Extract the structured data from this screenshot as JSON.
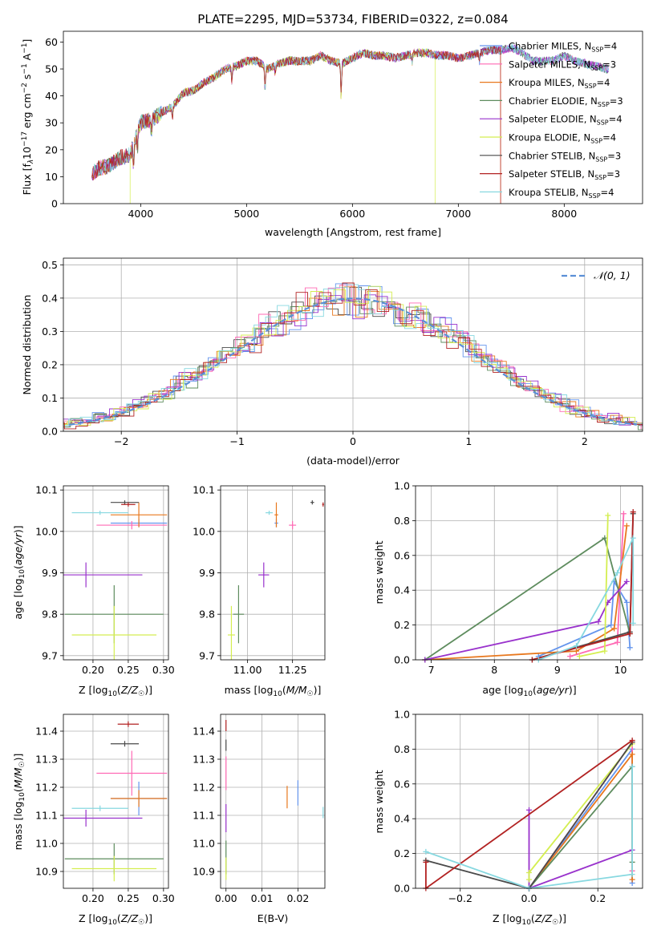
{
  "figure": {
    "title": "PLATE=2295, MJD=53734, FIBERID=0322, z=0.084"
  },
  "series": [
    {
      "name": "Chabrier MILES, N$_{SSP}$=4",
      "label_main": "Chabrier MILES, N",
      "label_sub": "SSP",
      "label_tail": "=4",
      "color": "#6495ed"
    },
    {
      "name": "Salpeter MILES, N$_{SSP}$=3",
      "label_main": "Salpeter MILES, N",
      "label_sub": "SSP",
      "label_tail": "=3",
      "color": "#ff69b4"
    },
    {
      "name": "Kroupa MILES, N$_{SSP}$=4",
      "label_main": "Kroupa MILES, N",
      "label_sub": "SSP",
      "label_tail": "=4",
      "color": "#e8781e"
    },
    {
      "name": "Chabrier ELODIE, N$_{SSP}$=3",
      "label_main": "Chabrier ELODIE, N",
      "label_sub": "SSP",
      "label_tail": "=3",
      "color": "#5e8c5e"
    },
    {
      "name": "Salpeter ELODIE, N$_{SSP}$=4",
      "label_main": "Salpeter ELODIE, N",
      "label_sub": "SSP",
      "label_tail": "=4",
      "color": "#9932cc"
    },
    {
      "name": "Kroupa ELODIE, N$_{SSP}$=4",
      "label_main": "Kroupa ELODIE, N",
      "label_sub": "SSP",
      "label_tail": "=4",
      "color": "#d4ee50"
    },
    {
      "name": "Chabrier STELIB, N$_{SSP}$=3",
      "label_main": "Chabrier STELIB, N",
      "label_sub": "SSP",
      "label_tail": "=3",
      "color": "#4a4a4a"
    },
    {
      "name": "Salpeter STELIB, N$_{SSP}$=3",
      "label_main": "Salpeter STELIB, N",
      "label_sub": "SSP",
      "label_tail": "=3",
      "color": "#b22222"
    },
    {
      "name": "Kroupa STELIB, N$_{SSP}$=4",
      "label_main": "Kroupa STELIB, N",
      "label_sub": "SSP",
      "label_tail": "=4",
      "color": "#87d8e0"
    }
  ],
  "chart_data": [
    {
      "id": "spectrum",
      "type": "line",
      "xlabel": "wavelength [Angstrom, rest frame]",
      "ylabel_main": "Flux [f",
      "ylabel_sub": "λ",
      "ylabel_mid": "10",
      "ylabel_sup1": "−17",
      "ylabel_mid2": " erg cm",
      "ylabel_sup2": "−2",
      "ylabel_mid3": " s",
      "ylabel_sup3": "−1",
      "ylabel_mid4": " A",
      "ylabel_sup4": "−1",
      "ylabel_end": "]",
      "xlim": [
        3270,
        8740
      ],
      "ylim": [
        0,
        64
      ],
      "xticks": [
        4000,
        5000,
        6000,
        7000,
        8000
      ],
      "yticks": [
        0,
        10,
        20,
        30,
        40,
        50,
        60
      ],
      "grid": false,
      "legend": "upper right",
      "spectrum_shape": [
        [
          3540,
          11
        ],
        [
          3600,
          13
        ],
        [
          3700,
          14
        ],
        [
          3800,
          17
        ],
        [
          3900,
          18
        ],
        [
          4000,
          30
        ],
        [
          4100,
          31
        ],
        [
          4200,
          34
        ],
        [
          4300,
          36
        ],
        [
          4400,
          41
        ],
        [
          4500,
          42
        ],
        [
          4600,
          45
        ],
        [
          4700,
          47
        ],
        [
          4800,
          50
        ],
        [
          4900,
          51
        ],
        [
          5000,
          53
        ],
        [
          5100,
          53
        ],
        [
          5200,
          50
        ],
        [
          5300,
          52
        ],
        [
          5400,
          53
        ],
        [
          5500,
          53
        ],
        [
          5600,
          53
        ],
        [
          5700,
          55
        ],
        [
          5800,
          53
        ],
        [
          5900,
          52
        ],
        [
          6000,
          54
        ],
        [
          6100,
          56
        ],
        [
          6200,
          55
        ],
        [
          6300,
          55
        ],
        [
          6400,
          54
        ],
        [
          6500,
          55
        ],
        [
          6600,
          56
        ],
        [
          6700,
          56
        ],
        [
          6800,
          55
        ],
        [
          6900,
          55
        ],
        [
          7000,
          54
        ],
        [
          7100,
          55
        ],
        [
          7200,
          56
        ],
        [
          7300,
          57
        ],
        [
          7400,
          57
        ],
        [
          7500,
          58
        ],
        [
          7600,
          56
        ],
        [
          7700,
          53
        ],
        [
          7800,
          53
        ],
        [
          7900,
          53
        ],
        [
          8000,
          55
        ],
        [
          8100,
          53
        ],
        [
          8200,
          52
        ],
        [
          8300,
          51
        ],
        [
          8400,
          50
        ]
      ],
      "spectrum_dips": [
        [
          3933,
          8
        ],
        [
          3969,
          7
        ],
        [
          4102,
          5
        ],
        [
          4300,
          4
        ],
        [
          4861,
          5
        ],
        [
          5175,
          9
        ],
        [
          5270,
          3
        ],
        [
          5893,
          12
        ],
        [
          6563,
          3
        ],
        [
          7200,
          3
        ]
      ],
      "cutoffs": {
        "0": 8420,
        "1": 8420,
        "2": 7400,
        "3": 8420,
        "4": 8420,
        "5": 6780,
        "6": 8420,
        "7": 7400,
        "8": 8420
      },
      "starts": {
        "0": 3540,
        "1": 3540,
        "2": 3540,
        "3": 3540,
        "4": 3540,
        "5": 3900,
        "6": 3540,
        "7": 3540,
        "8": 3540
      }
    },
    {
      "id": "residual_hist",
      "type": "step-histogram",
      "xlabel": "(data-model)/error",
      "ylabel": "Normed distribution",
      "xlim": [
        -2.5,
        2.5
      ],
      "ylim": [
        0,
        0.52
      ],
      "xticks": [
        -2,
        -1,
        0,
        1,
        2
      ],
      "yticks": [
        0.0,
        0.1,
        0.2,
        0.3,
        0.4,
        0.5
      ],
      "grid": true,
      "bin_width": 0.1,
      "reference": {
        "name": "𝒩(0, 1)",
        "mean": 0,
        "sigma": 1,
        "color": "#5b8fd6"
      },
      "legend": "upper right"
    },
    {
      "id": "age_vs_Z",
      "type": "errorbar",
      "xlabel": "Z [log10(Z/Z☉)]",
      "ylabel": "age  [log10(age/yr)]",
      "xlim": [
        0.158,
        0.307
      ],
      "ylim": [
        9.69,
        10.11
      ],
      "xticks": [
        0.2,
        0.25,
        0.3
      ],
      "yticks": [
        9.7,
        9.8,
        9.9,
        10.0,
        10.1
      ],
      "grid": true,
      "points": [
        {
          "s": 0,
          "x": 0.265,
          "y": 10.02,
          "xerr": 0.04,
          "yerr": 0.01
        },
        {
          "s": 1,
          "x": 0.255,
          "y": 10.015,
          "xerr": 0.05,
          "yerr": 0.01
        },
        {
          "s": 2,
          "x": 0.265,
          "y": 10.04,
          "xerr": 0.04,
          "yerr": 0.03
        },
        {
          "s": 3,
          "x": 0.23,
          "y": 9.8,
          "xerr": 0.07,
          "yerr": 0.07
        },
        {
          "s": 4,
          "x": 0.19,
          "y": 9.895,
          "xerr": 0.08,
          "yerr": 0.03
        },
        {
          "s": 5,
          "x": 0.23,
          "y": 9.75,
          "xerr": 0.06,
          "yerr": 0.07
        },
        {
          "s": 6,
          "x": 0.245,
          "y": 10.07,
          "xerr": 0.02,
          "yerr": 0.005
        },
        {
          "s": 7,
          "x": 0.25,
          "y": 10.065,
          "xerr": 0.01,
          "yerr": 0.005
        },
        {
          "s": 8,
          "x": 0.21,
          "y": 10.045,
          "xerr": 0.04,
          "yerr": 0.005
        }
      ]
    },
    {
      "id": "age_vs_mass",
      "type": "errorbar",
      "xlabel": "mass [log10(M/M☉)]",
      "ylabel": "",
      "xlim": [
        10.85,
        11.43
      ],
      "ylim": [
        9.69,
        10.11
      ],
      "xticks": [
        11.0,
        11.25
      ],
      "yticks": [
        9.7,
        9.8,
        9.9,
        10.0,
        10.1
      ],
      "grid": true,
      "points": [
        {
          "s": 0,
          "x": 11.16,
          "y": 10.02,
          "xerr": 0.01,
          "yerr": 0.01
        },
        {
          "s": 1,
          "x": 11.25,
          "y": 10.015,
          "xerr": 0.02,
          "yerr": 0.01
        },
        {
          "s": 2,
          "x": 11.16,
          "y": 10.04,
          "xerr": 0.01,
          "yerr": 0.03
        },
        {
          "s": 3,
          "x": 10.95,
          "y": 9.8,
          "xerr": 0.03,
          "yerr": 0.07
        },
        {
          "s": 4,
          "x": 11.09,
          "y": 9.895,
          "xerr": 0.03,
          "yerr": 0.03
        },
        {
          "s": 5,
          "x": 10.91,
          "y": 9.75,
          "xerr": 0.02,
          "yerr": 0.07
        },
        {
          "s": 6,
          "x": 11.36,
          "y": 10.07,
          "xerr": 0.01,
          "yerr": 0.005
        },
        {
          "s": 7,
          "x": 11.42,
          "y": 10.065,
          "xerr": 0.005,
          "yerr": 0.005
        },
        {
          "s": 8,
          "x": 11.12,
          "y": 10.045,
          "xerr": 0.02,
          "yerr": 0.005
        }
      ]
    },
    {
      "id": "weight_vs_age",
      "type": "line",
      "xlabel": "age  [log10(age/yr)]",
      "ylabel": "mass weight",
      "xlim": [
        6.75,
        10.35
      ],
      "ylim": [
        0,
        1.0
      ],
      "xticks": [
        7,
        8,
        9,
        10
      ],
      "yticks": [
        0.0,
        0.2,
        0.4,
        0.6,
        0.8,
        1.0
      ],
      "grid": true,
      "lines": [
        {
          "s": 0,
          "pts": [
            [
              8.7,
              0.02
            ],
            [
              9.85,
              0.2
            ],
            [
              9.9,
              0.45
            ],
            [
              10.1,
              0.33
            ],
            [
              10.15,
              0.07
            ]
          ]
        },
        {
          "s": 1,
          "pts": [
            [
              9.2,
              0.02
            ],
            [
              9.95,
              0.1
            ],
            [
              10.05,
              0.84
            ]
          ]
        },
        {
          "s": 2,
          "pts": [
            [
              6.9,
              0.0
            ],
            [
              9.3,
              0.05
            ],
            [
              9.9,
              0.18
            ],
            [
              10.1,
              0.77
            ]
          ]
        },
        {
          "s": 3,
          "pts": [
            [
              6.9,
              0.0
            ],
            [
              9.75,
              0.7
            ],
            [
              10.15,
              0.15
            ]
          ]
        },
        {
          "s": 4,
          "pts": [
            [
              6.9,
              0.0
            ],
            [
              9.65,
              0.22
            ],
            [
              9.8,
              0.33
            ],
            [
              10.1,
              0.45
            ]
          ]
        },
        {
          "s": 5,
          "pts": [
            [
              9.35,
              0.02
            ],
            [
              9.75,
              0.05
            ],
            [
              9.8,
              0.83
            ]
          ]
        },
        {
          "s": 6,
          "pts": [
            [
              8.6,
              0.0
            ],
            [
              10.15,
              0.16
            ],
            [
              10.2,
              0.84
            ]
          ]
        },
        {
          "s": 7,
          "pts": [
            [
              8.6,
              0.0
            ],
            [
              10.15,
              0.15
            ],
            [
              10.2,
              0.85
            ]
          ]
        },
        {
          "s": 8,
          "pts": [
            [
              8.7,
              0.0
            ],
            [
              9.3,
              0.08
            ],
            [
              9.95,
              0.5
            ],
            [
              10.2,
              0.7
            ],
            [
              10.2,
              0.21
            ]
          ]
        }
      ]
    },
    {
      "id": "mass_vs_Z",
      "type": "errorbar",
      "xlabel": "Z [log10(Z/Z☉)]",
      "ylabel": "mass [log10(M/M☉)]",
      "xlim": [
        0.158,
        0.307
      ],
      "ylim": [
        10.84,
        11.46
      ],
      "xticks": [
        0.2,
        0.25,
        0.3
      ],
      "yticks": [
        10.9,
        11.0,
        11.1,
        11.2,
        11.3,
        11.4
      ],
      "grid": true,
      "points": [
        {
          "s": 0,
          "x": 0.265,
          "y": 11.16,
          "xerr": 0.04,
          "yerr": 0.06
        },
        {
          "s": 1,
          "x": 0.255,
          "y": 11.25,
          "xerr": 0.05,
          "yerr": 0.08
        },
        {
          "s": 2,
          "x": 0.265,
          "y": 11.16,
          "xerr": 0.04,
          "yerr": 0.03
        },
        {
          "s": 3,
          "x": 0.23,
          "y": 10.945,
          "xerr": 0.07,
          "yerr": 0.055
        },
        {
          "s": 4,
          "x": 0.19,
          "y": 11.09,
          "xerr": 0.08,
          "yerr": 0.03
        },
        {
          "s": 5,
          "x": 0.23,
          "y": 10.91,
          "xerr": 0.06,
          "yerr": 0.045
        },
        {
          "s": 6,
          "x": 0.245,
          "y": 11.355,
          "xerr": 0.02,
          "yerr": 0.01
        },
        {
          "s": 7,
          "x": 0.25,
          "y": 11.425,
          "xerr": 0.015,
          "yerr": 0.01
        },
        {
          "s": 8,
          "x": 0.21,
          "y": 11.125,
          "xerr": 0.04,
          "yerr": 0.01
        }
      ]
    },
    {
      "id": "mass_vs_ebv",
      "type": "errorbar",
      "xlabel": "E(B-V)",
      "ylabel": "",
      "xlim": [
        -0.0015,
        0.0275
      ],
      "ylim": [
        10.84,
        11.46
      ],
      "xticks": [
        0.0,
        0.01,
        0.02
      ],
      "yticks": [
        10.9,
        11.0,
        11.1,
        11.2,
        11.3,
        11.4
      ],
      "grid": true,
      "points": [
        {
          "s": 0,
          "x": 0.02,
          "y": 11.18,
          "xerr": 0,
          "yerr": 0.045
        },
        {
          "s": 1,
          "x": 0.0,
          "y": 11.25,
          "xerr": 0,
          "yerr": 0.06
        },
        {
          "s": 2,
          "x": 0.017,
          "y": 11.165,
          "xerr": 0,
          "yerr": 0.04
        },
        {
          "s": 3,
          "x": 0.0,
          "y": 10.95,
          "xerr": 0,
          "yerr": 0.06
        },
        {
          "s": 4,
          "x": 0.0,
          "y": 11.09,
          "xerr": 0,
          "yerr": 0.05
        },
        {
          "s": 5,
          "x": 0.0,
          "y": 10.91,
          "xerr": 0,
          "yerr": 0.04
        },
        {
          "s": 6,
          "x": 0.0,
          "y": 11.35,
          "xerr": 0,
          "yerr": 0.02
        },
        {
          "s": 7,
          "x": 0.0,
          "y": 11.42,
          "xerr": 0,
          "yerr": 0.02
        },
        {
          "s": 8,
          "x": 0.027,
          "y": 11.11,
          "xerr": 0,
          "yerr": 0.02
        }
      ]
    },
    {
      "id": "weight_vs_Z",
      "type": "line",
      "xlabel": "Z [log10(Z/Z☉)]",
      "ylabel": "mass weight",
      "xlim": [
        -0.33,
        0.33
      ],
      "ylim": [
        0,
        1.0
      ],
      "xticks": [
        -0.2,
        0.0,
        0.2
      ],
      "yticks": [
        0.0,
        0.2,
        0.4,
        0.6,
        0.8,
        1.0
      ],
      "grid": true,
      "lines": [
        {
          "s": 0,
          "pts": [
            [
              0.0,
              0.0
            ],
            [
              0.3,
              0.8
            ],
            [
              0.3,
              0.03
            ]
          ]
        },
        {
          "s": 1,
          "pts": [
            [
              0.0,
              0.0
            ],
            [
              0.3,
              0.84
            ],
            [
              0.3,
              0.1
            ]
          ]
        },
        {
          "s": 2,
          "pts": [
            [
              0.0,
              0.0
            ],
            [
              0.3,
              0.77
            ],
            [
              0.3,
              0.05
            ]
          ]
        },
        {
          "s": 3,
          "pts": [
            [
              0.0,
              0.0
            ],
            [
              0.3,
              0.7
            ],
            [
              0.3,
              0.15
            ]
          ]
        },
        {
          "s": 4,
          "pts": [
            [
              0.0,
              0.45
            ],
            [
              0.0,
              0.0
            ],
            [
              0.3,
              0.22
            ]
          ]
        },
        {
          "s": 5,
          "pts": [
            [
              0.0,
              0.05
            ],
            [
              0.0,
              0.09
            ],
            [
              0.3,
              0.83
            ]
          ]
        },
        {
          "s": 6,
          "pts": [
            [
              -0.3,
              0.16
            ],
            [
              0.0,
              0.0
            ],
            [
              0.3,
              0.84
            ]
          ]
        },
        {
          "s": 7,
          "pts": [
            [
              -0.3,
              0.15
            ],
            [
              -0.3,
              0.0
            ],
            [
              0.3,
              0.85
            ]
          ]
        },
        {
          "s": 8,
          "pts": [
            [
              -0.3,
              0.21
            ],
            [
              0.0,
              0.0
            ],
            [
              0.3,
              0.08
            ],
            [
              0.3,
              0.7
            ]
          ]
        }
      ]
    }
  ]
}
